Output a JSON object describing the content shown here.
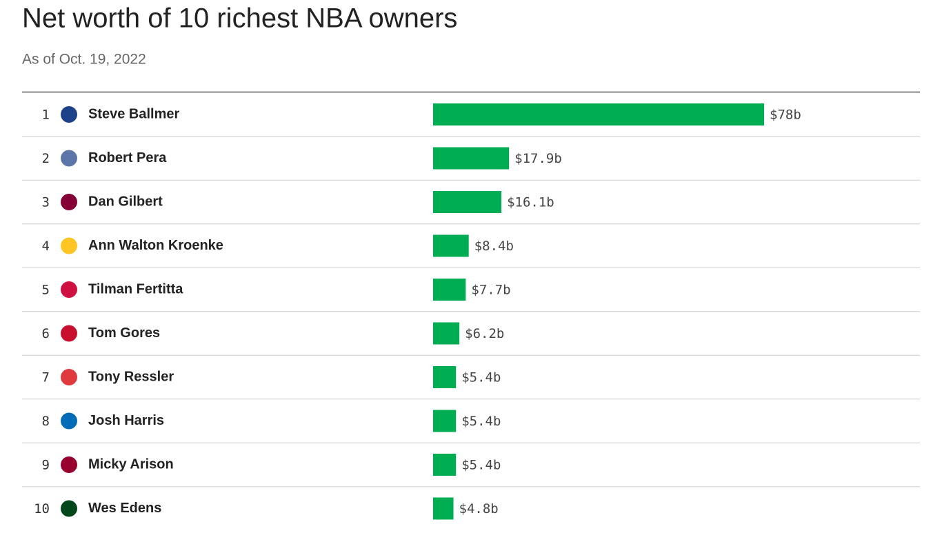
{
  "chart_data": {
    "type": "bar",
    "orientation": "horizontal",
    "title": "Net worth of 10 richest NBA owners",
    "subtitle": "As of Oct. 19, 2022",
    "ranks": [
      1,
      2,
      3,
      4,
      5,
      6,
      7,
      8,
      9,
      10
    ],
    "categories": [
      "Steve Ballmer",
      "Robert Pera",
      "Dan Gilbert",
      "Ann Walton Kroenke",
      "Tilman Fertitta",
      "Tom Gores",
      "Tony Ressler",
      "Josh Harris",
      "Micky Arison",
      "Wes Edens"
    ],
    "values": [
      78,
      17.9,
      16.1,
      8.4,
      7.7,
      6.2,
      5.4,
      5.4,
      5.4,
      4.8
    ],
    "value_labels": [
      "$78b",
      "$17.9b",
      "$16.1b",
      "$8.4b",
      "$7.7b",
      "$6.2b",
      "$5.4b",
      "$5.4b",
      "$5.4b",
      "$4.8b"
    ],
    "color": "#00ad52",
    "xlim": [
      0,
      78
    ]
  }
}
